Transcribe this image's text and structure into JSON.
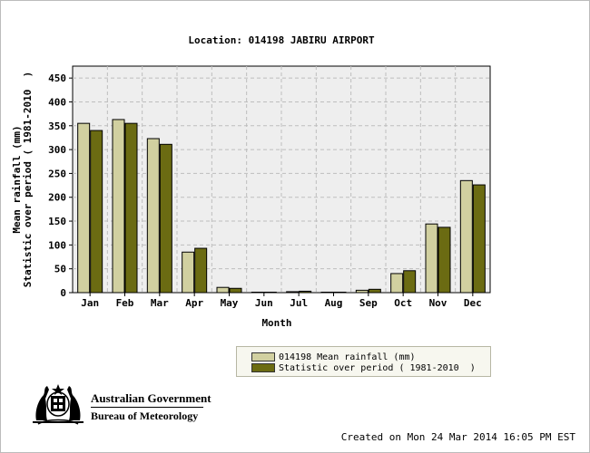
{
  "colors": {
    "plot_bg": "#eeeeee",
    "grid": "#bdbdbd",
    "series_mean": "#d1d0a0",
    "series_stat": "#6b6b12",
    "text": "#000000"
  },
  "footer": {
    "created": "Created on Mon 24 Mar 2014 16:05 PM EST"
  },
  "branding": {
    "line1": "Australian Government",
    "line2": "Bureau of Meteorology",
    "crest_icon": "coat-of-arms-icon"
  },
  "chart_data": {
    "type": "bar",
    "title": "Location: 014198 JABIRU AIRPORT",
    "xlabel": "Month",
    "ylabel": [
      "Mean rainfall (mm)",
      "Statistic over period ( 1981-2010  )"
    ],
    "categories": [
      "Jan",
      "Feb",
      "Mar",
      "Apr",
      "May",
      "Jun",
      "Jul",
      "Aug",
      "Sep",
      "Oct",
      "Nov",
      "Dec"
    ],
    "ylim": [
      0,
      475
    ],
    "yticks": [
      0,
      50,
      100,
      150,
      200,
      250,
      300,
      350,
      400,
      450
    ],
    "grid": true,
    "legend_position": "bottom-center",
    "series": [
      {
        "name": "014198 Mean rainfall (mm)",
        "color": "#d1d0a0",
        "values": [
          355,
          363,
          323,
          85,
          11,
          1,
          2,
          1,
          5,
          40,
          144,
          235
        ]
      },
      {
        "name": "Statistic over period ( 1981-2010  )",
        "color": "#6b6b12",
        "values": [
          340,
          355,
          311,
          93,
          9,
          1,
          3,
          1,
          7,
          46,
          137,
          226
        ]
      }
    ]
  }
}
